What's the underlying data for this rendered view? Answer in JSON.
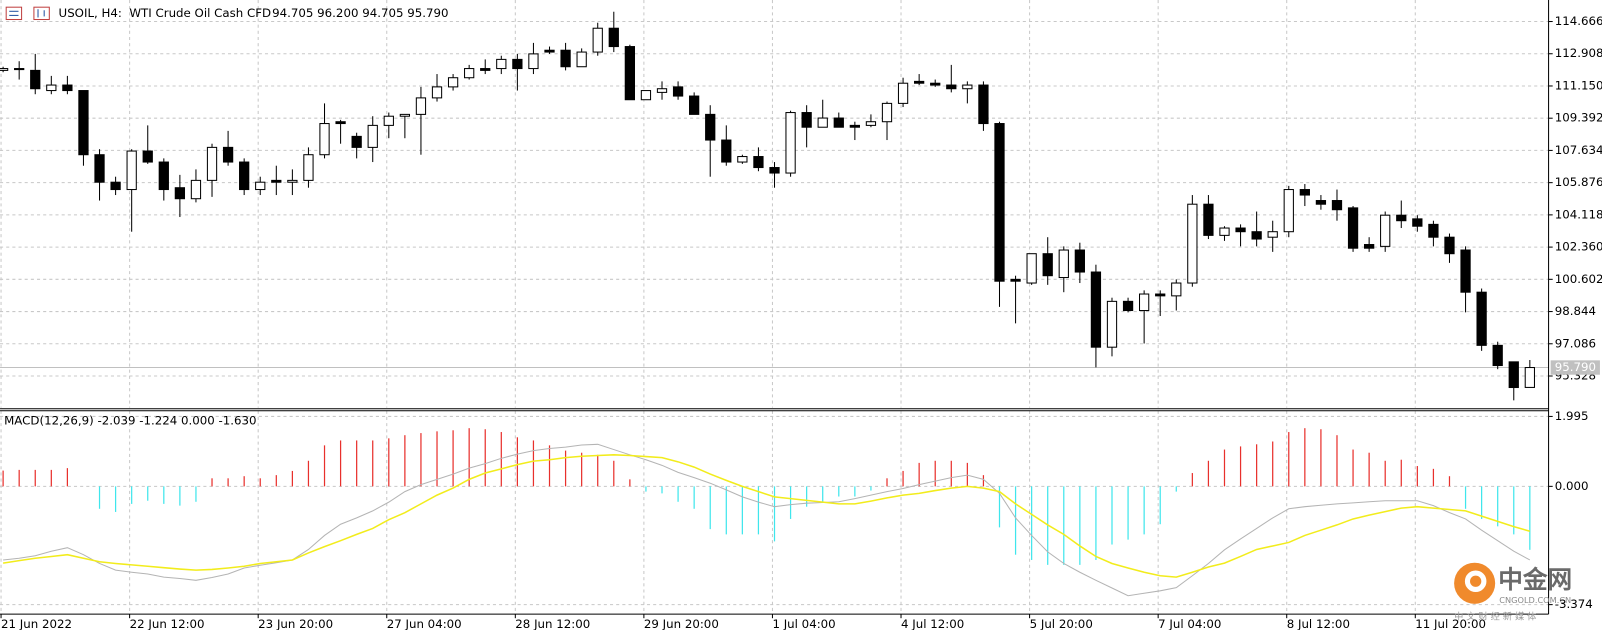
{
  "chart_data": [
    {
      "type": "candlestick",
      "title": "USOIL, H4:",
      "subtitle": "WTI Crude Oil Cash CFD",
      "header_ohlc": "94.705 96.200 94.705 95.790",
      "categories": [
        "21 Jun 2022",
        null,
        null,
        null,
        null,
        null,
        null,
        null,
        "22 Jun 12:00",
        null,
        null,
        null,
        null,
        null,
        null,
        null,
        "23 Jun 20:00",
        null,
        null,
        null,
        null,
        null,
        null,
        null,
        "27 Jun 04:00",
        null,
        null,
        null,
        null,
        null,
        null,
        null,
        "28 Jun 12:00",
        null,
        null,
        null,
        null,
        null,
        null,
        null,
        "29 Jun 20:00",
        null,
        null,
        null,
        null,
        null,
        null,
        null,
        "1 Jul 04:00",
        null,
        null,
        null,
        null,
        null,
        null,
        null,
        "4 Jul 12:00",
        null,
        null,
        null,
        null,
        null,
        null,
        null,
        "5 Jul 20:00",
        null,
        null,
        null,
        null,
        null,
        null,
        null,
        "7 Jul 04:00",
        null,
        null,
        null,
        null,
        null,
        null,
        null,
        "8 Jul 12:00",
        null,
        null,
        null,
        null,
        null,
        null,
        null,
        "11 Jul 20:00",
        null,
        null,
        null,
        null,
        null,
        null,
        null
      ],
      "open": [
        112.0,
        112.05,
        112.0,
        110.9,
        111.2,
        110.9,
        107.4,
        105.9,
        105.5,
        107.6,
        107.0,
        105.6,
        105.0,
        106.0,
        107.8,
        107.0,
        105.5,
        106.0,
        105.9,
        106.0,
        107.4,
        109.2,
        108.4,
        107.8,
        109.0,
        109.5,
        109.6,
        110.5,
        111.1,
        111.6,
        112.1,
        112.1,
        112.6,
        112.1,
        113.1,
        113.1,
        112.2,
        113.0,
        114.3,
        113.3,
        110.4,
        110.8,
        111.1,
        110.6,
        109.6,
        108.2,
        107.0,
        107.3,
        106.7,
        106.4,
        109.7,
        108.9,
        109.4,
        109.0,
        109.0,
        109.2,
        110.2,
        111.4,
        111.3,
        111.2,
        111.0,
        111.2,
        109.1,
        100.6,
        100.4,
        102.0,
        100.7,
        102.2,
        101.0,
        96.9,
        99.4,
        98.9,
        99.8,
        99.7,
        100.4,
        104.7,
        103.0,
        103.4,
        103.2,
        102.9,
        103.2,
        105.5,
        104.9,
        104.9,
        104.5,
        102.5,
        102.4,
        104.1,
        103.9,
        103.6,
        102.9,
        102.2,
        99.9,
        97.0,
        96.1,
        94.705
      ],
      "high": [
        112.2,
        112.5,
        112.9,
        111.7,
        111.7,
        110.9,
        107.7,
        106.2,
        107.7,
        109.0,
        107.2,
        106.3,
        106.6,
        108.0,
        108.7,
        107.2,
        106.2,
        106.8,
        106.6,
        107.8,
        110.2,
        109.3,
        108.6,
        109.5,
        109.7,
        109.6,
        111.1,
        111.8,
        111.8,
        112.3,
        112.6,
        112.8,
        112.9,
        113.5,
        113.3,
        113.5,
        113.2,
        114.6,
        115.2,
        113.4,
        110.9,
        111.4,
        111.4,
        110.8,
        110.1,
        109.0,
        107.4,
        107.8,
        107.0,
        109.8,
        110.1,
        110.4,
        109.7,
        109.2,
        109.6,
        110.3,
        111.6,
        111.8,
        111.5,
        112.3,
        111.4,
        111.4,
        109.2,
        100.8,
        102.0,
        102.9,
        102.4,
        102.6,
        101.4,
        99.6,
        99.6,
        100.0,
        100.0,
        100.6,
        105.2,
        105.2,
        103.5,
        103.6,
        104.3,
        103.8,
        105.7,
        105.8,
        105.2,
        105.5,
        104.6,
        102.9,
        104.3,
        104.9,
        104.1,
        103.8,
        103.1,
        102.4,
        100.1,
        97.2,
        96.1,
        96.2
      ],
      "low": [
        111.9,
        111.5,
        110.7,
        110.7,
        110.7,
        106.8,
        104.9,
        105.2,
        103.2,
        106.9,
        104.9,
        104.0,
        104.8,
        105.1,
        106.8,
        105.2,
        105.2,
        105.2,
        105.2,
        105.6,
        107.2,
        108.0,
        107.2,
        107.0,
        108.3,
        108.3,
        107.4,
        110.3,
        110.9,
        111.5,
        111.8,
        111.8,
        110.9,
        111.8,
        112.9,
        112.0,
        112.2,
        112.8,
        113.0,
        110.4,
        110.4,
        110.4,
        110.4,
        109.6,
        106.2,
        106.8,
        106.9,
        106.5,
        105.6,
        106.2,
        107.8,
        108.9,
        108.9,
        108.2,
        108.9,
        108.2,
        110.0,
        111.2,
        111.1,
        110.8,
        110.2,
        108.7,
        99.1,
        98.2,
        100.3,
        100.3,
        99.9,
        100.4,
        95.8,
        96.4,
        98.8,
        97.1,
        98.6,
        98.9,
        100.2,
        102.8,
        102.7,
        102.4,
        102.4,
        102.1,
        102.9,
        104.6,
        104.4,
        103.8,
        102.1,
        102.1,
        102.1,
        103.4,
        103.2,
        102.4,
        101.5,
        98.8,
        96.7,
        95.7,
        94.0,
        94.705
      ],
      "close": [
        112.1,
        112.1,
        111.0,
        111.2,
        110.9,
        107.4,
        105.9,
        105.5,
        107.6,
        107.0,
        105.5,
        105.0,
        106.0,
        107.8,
        107.0,
        105.5,
        105.9,
        105.9,
        106.0,
        107.4,
        109.1,
        109.1,
        107.8,
        109.0,
        109.5,
        109.6,
        110.5,
        111.1,
        111.6,
        112.1,
        112.0,
        112.6,
        112.1,
        112.9,
        113.0,
        112.2,
        113.0,
        114.3,
        113.3,
        110.4,
        110.9,
        111.0,
        110.6,
        109.6,
        108.2,
        107.0,
        107.3,
        106.7,
        106.4,
        109.7,
        108.9,
        109.4,
        108.9,
        108.9,
        109.2,
        110.2,
        111.3,
        111.3,
        111.2,
        111.0,
        111.2,
        109.1,
        100.5,
        100.5,
        102.0,
        100.8,
        102.2,
        101.0,
        96.9,
        99.4,
        98.9,
        99.8,
        99.7,
        100.4,
        104.7,
        103.0,
        103.4,
        103.2,
        102.8,
        103.2,
        105.5,
        105.2,
        104.7,
        104.4,
        102.3,
        102.3,
        104.1,
        103.8,
        103.5,
        102.9,
        102.0,
        99.9,
        97.0,
        95.9,
        94.7,
        95.79
      ],
      "up_color": "#ffffff",
      "down_color": "#000000",
      "ylim": [
        93.6,
        115.84
      ],
      "yticks": [
        114.666,
        112.908,
        {
          "value": 111.15,
          "label": "111.150"
        },
        109.392,
        107.634,
        105.876,
        104.118,
        {
          "value": 102.36,
          "label": "102.360"
        },
        100.602,
        98.844,
        97.086,
        95.328
      ],
      "last_price": {
        "value": 95.79,
        "label": "95.790"
      },
      "grid": true
    },
    {
      "type": "macd",
      "title": "MACD(12,26,9) -2.039 -1.224 0.000 -1.630",
      "histogram": [
        0.45,
        0.47,
        0.47,
        0.47,
        0.52,
        0,
        -0.64,
        -0.73,
        -0.5,
        -0.41,
        -0.5,
        -0.55,
        -0.44,
        0.23,
        0.23,
        0.29,
        0.23,
        0.32,
        0.44,
        0.73,
        1.17,
        1.31,
        1.31,
        1.31,
        1.37,
        1.46,
        1.52,
        1.57,
        1.6,
        1.66,
        1.63,
        1.55,
        1.4,
        1.31,
        1.17,
        1.02,
        0.96,
        0.9,
        0.73,
        0.2,
        -0.15,
        -0.2,
        -0.44,
        -0.64,
        -1.22,
        -1.37,
        -1.37,
        -1.37,
        -1.57,
        -0.93,
        -0.58,
        -0.44,
        -0.29,
        -0.29,
        -0.12,
        0.23,
        0.44,
        0.67,
        0.73,
        0.73,
        0.67,
        0.32,
        -1.17,
        -1.95,
        -2.1,
        -2.24,
        -2.24,
        -2.24,
        -2.1,
        -1.66,
        -1.52,
        -1.37,
        -1.08,
        -0.15,
        0.38,
        0.73,
        1.05,
        1.14,
        1.2,
        1.28,
        1.55,
        1.66,
        1.63,
        1.46,
        1.05,
        0.96,
        0.73,
        0.76,
        0.58,
        0.5,
        0.29,
        -0.64,
        -0.93,
        -1.14,
        -1.37,
        -1.81
      ],
      "positive_color": "#e8302c",
      "negative_color": "#3fe6ec",
      "macd": [
        -2.1,
        -2.05,
        -1.98,
        -1.85,
        -1.75,
        -1.95,
        -2.2,
        -2.39,
        -2.45,
        -2.5,
        -2.59,
        -2.63,
        -2.68,
        -2.6,
        -2.5,
        -2.33,
        -2.25,
        -2.18,
        -2.1,
        -1.8,
        -1.4,
        -1.08,
        -0.9,
        -0.7,
        -0.45,
        -0.15,
        0.05,
        0.2,
        0.35,
        0.52,
        0.65,
        0.8,
        0.92,
        1.02,
        1.08,
        1.12,
        1.18,
        1.2,
        1.05,
        0.9,
        0.76,
        0.6,
        0.4,
        0.25,
        0.09,
        -0.1,
        -0.3,
        -0.45,
        -0.58,
        -0.52,
        -0.48,
        -0.46,
        -0.44,
        -0.35,
        -0.25,
        -0.15,
        -0.06,
        0.05,
        0.15,
        0.25,
        0.32,
        0.2,
        -0.2,
        -0.9,
        -1.4,
        -1.87,
        -2.2,
        -2.45,
        -2.68,
        -2.9,
        -3.12,
        -3.05,
        -2.98,
        -2.89,
        -2.55,
        -2.2,
        -1.81,
        -1.5,
        -1.2,
        -0.9,
        -0.64,
        -0.58,
        -0.54,
        -0.5,
        -0.47,
        -0.44,
        -0.41,
        -0.41,
        -0.41,
        -0.55,
        -0.75,
        -0.93,
        -1.25,
        -1.55,
        -1.85,
        -2.1
      ],
      "macd_color": "#b4b4b4",
      "signal": [
        -2.19,
        -2.12,
        -2.05,
        -2.0,
        -1.95,
        -2.05,
        -2.15,
        -2.2,
        -2.24,
        -2.28,
        -2.32,
        -2.36,
        -2.39,
        -2.37,
        -2.33,
        -2.28,
        -2.2,
        -2.15,
        -2.1,
        -1.9,
        -1.72,
        -1.55,
        -1.37,
        -1.2,
        -0.95,
        -0.75,
        -0.5,
        -0.25,
        -0.05,
        0.2,
        0.38,
        0.5,
        0.62,
        0.72,
        0.76,
        0.82,
        0.86,
        0.88,
        0.9,
        0.88,
        0.85,
        0.82,
        0.7,
        0.55,
        0.35,
        0.17,
        0.0,
        -0.15,
        -0.3,
        -0.35,
        -0.4,
        -0.45,
        -0.5,
        -0.5,
        -0.42,
        -0.33,
        -0.25,
        -0.2,
        -0.12,
        -0.05,
        0,
        -0.05,
        -0.15,
        -0.5,
        -0.8,
        -1.1,
        -1.37,
        -1.7,
        -2.0,
        -2.2,
        -2.33,
        -2.45,
        -2.55,
        -2.59,
        -2.45,
        -2.3,
        -2.19,
        -2.0,
        -1.8,
        -1.7,
        -1.6,
        -1.4,
        -1.25,
        -1.1,
        -0.93,
        -0.82,
        -0.72,
        -0.62,
        -0.58,
        -0.62,
        -0.66,
        -0.7,
        -0.85,
        -1.0,
        -1.15,
        -1.28
      ],
      "signal_color": "#f2ec1c",
      "ylim": [
        -3.644,
        2.157
      ],
      "yticks": [
        1.995,
        {
          "value": 0,
          "label": "0.000"
        },
        -3.374
      ],
      "grid": true
    }
  ],
  "watermark": {
    "name": "中金网",
    "site": "CNGOLD.COM.CN",
    "tagline": "中 文 财 经 新 媒 体"
  }
}
